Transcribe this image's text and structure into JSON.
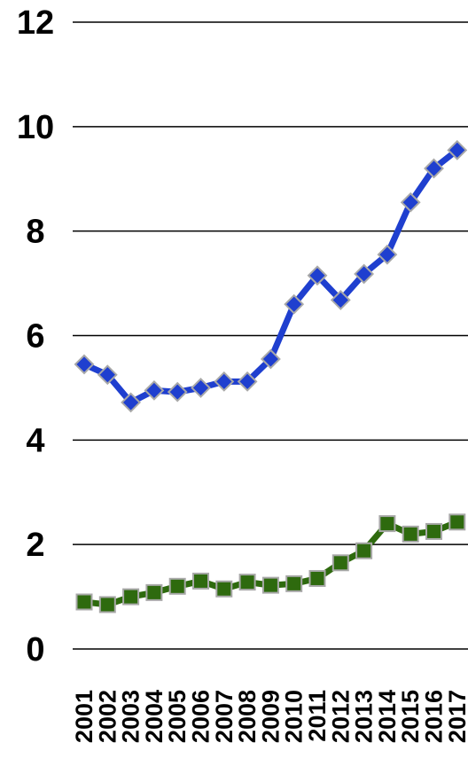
{
  "chart_data": {
    "type": "line",
    "title": "",
    "xlabel": "",
    "ylabel": "",
    "ylim": [
      0,
      12
    ],
    "yticks": [
      "0",
      "2",
      "4",
      "6",
      "8",
      "10",
      "12"
    ],
    "grid": true,
    "x": [
      "2001",
      "2002",
      "2003",
      "2004",
      "2005",
      "2006",
      "2007",
      "2008",
      "2009",
      "2010",
      "2011",
      "2012",
      "2013",
      "2014",
      "2015",
      "2016",
      "2017"
    ],
    "series": [
      {
        "color": "#1f3fcf",
        "marker": "diamond",
        "values": [
          5.45,
          5.25,
          4.72,
          4.95,
          4.92,
          5.0,
          5.12,
          5.12,
          5.55,
          6.6,
          7.15,
          6.68,
          7.18,
          7.55,
          8.55,
          9.2,
          9.55
        ]
      },
      {
        "color": "#2e6a0e",
        "marker": "square",
        "values": [
          0.9,
          0.85,
          1.0,
          1.08,
          1.2,
          1.3,
          1.15,
          1.28,
          1.22,
          1.25,
          1.35,
          1.65,
          1.88,
          2.4,
          2.2,
          2.25,
          2.43
        ]
      }
    ]
  }
}
